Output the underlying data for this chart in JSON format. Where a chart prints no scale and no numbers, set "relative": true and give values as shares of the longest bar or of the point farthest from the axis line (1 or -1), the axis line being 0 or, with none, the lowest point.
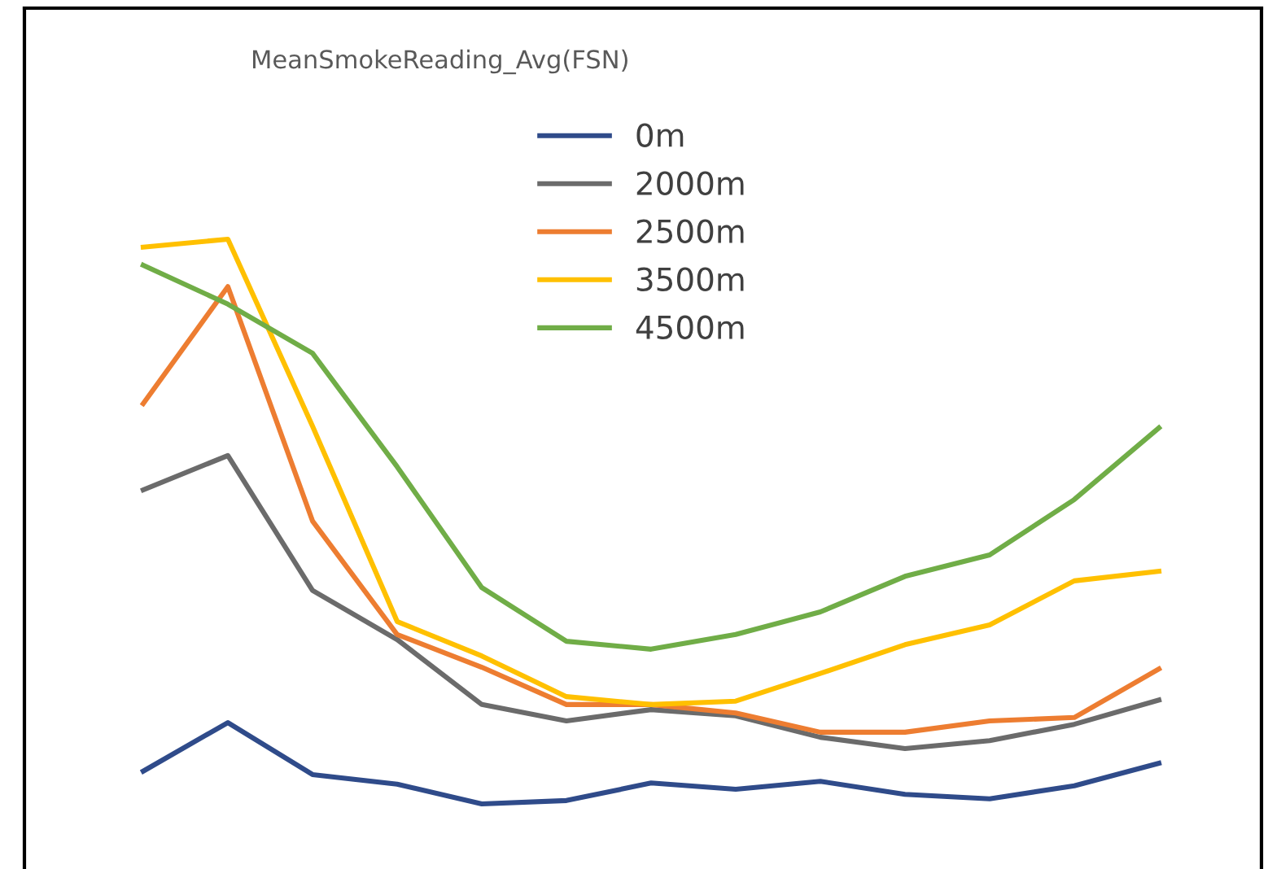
{
  "chart_data": {
    "type": "line",
    "title": "MeanSmokeReading_Avg(FSN)",
    "relative": true,
    "legend": "top",
    "categories": [
      null,
      null,
      null,
      null,
      null,
      null,
      null,
      null,
      null,
      null,
      null,
      null,
      null
    ],
    "series": [
      {
        "name": "0m",
        "color": "#2f4b8a",
        "values": [
          0.058,
          0.144,
          0.052,
          0.035,
          0.0,
          0.006,
          0.037,
          0.026,
          0.04,
          0.017,
          0.009,
          0.032,
          0.072
        ]
      },
      {
        "name": "2000m",
        "color": "#6b6b6b",
        "values": [
          0.556,
          0.617,
          0.378,
          0.291,
          0.176,
          0.147,
          0.167,
          0.156,
          0.118,
          0.098,
          0.112,
          0.141,
          0.184
        ]
      },
      {
        "name": "2500m",
        "color": "#ed7d31",
        "values": [
          0.709,
          0.916,
          0.501,
          0.3,
          0.242,
          0.176,
          0.176,
          0.161,
          0.127,
          0.127,
          0.147,
          0.153,
          0.239
        ]
      },
      {
        "name": "3500m",
        "color": "#ffc000",
        "values": [
          0.986,
          1.0,
          0.669,
          0.323,
          0.262,
          0.19,
          0.176,
          0.182,
          0.231,
          0.282,
          0.317,
          0.395,
          0.412
        ]
      },
      {
        "name": "4500m",
        "color": "#70ad47",
        "values": [
          0.954,
          0.885,
          0.798,
          0.597,
          0.383,
          0.288,
          0.274,
          0.3,
          0.34,
          0.403,
          0.441,
          0.539,
          0.666
        ]
      }
    ]
  }
}
